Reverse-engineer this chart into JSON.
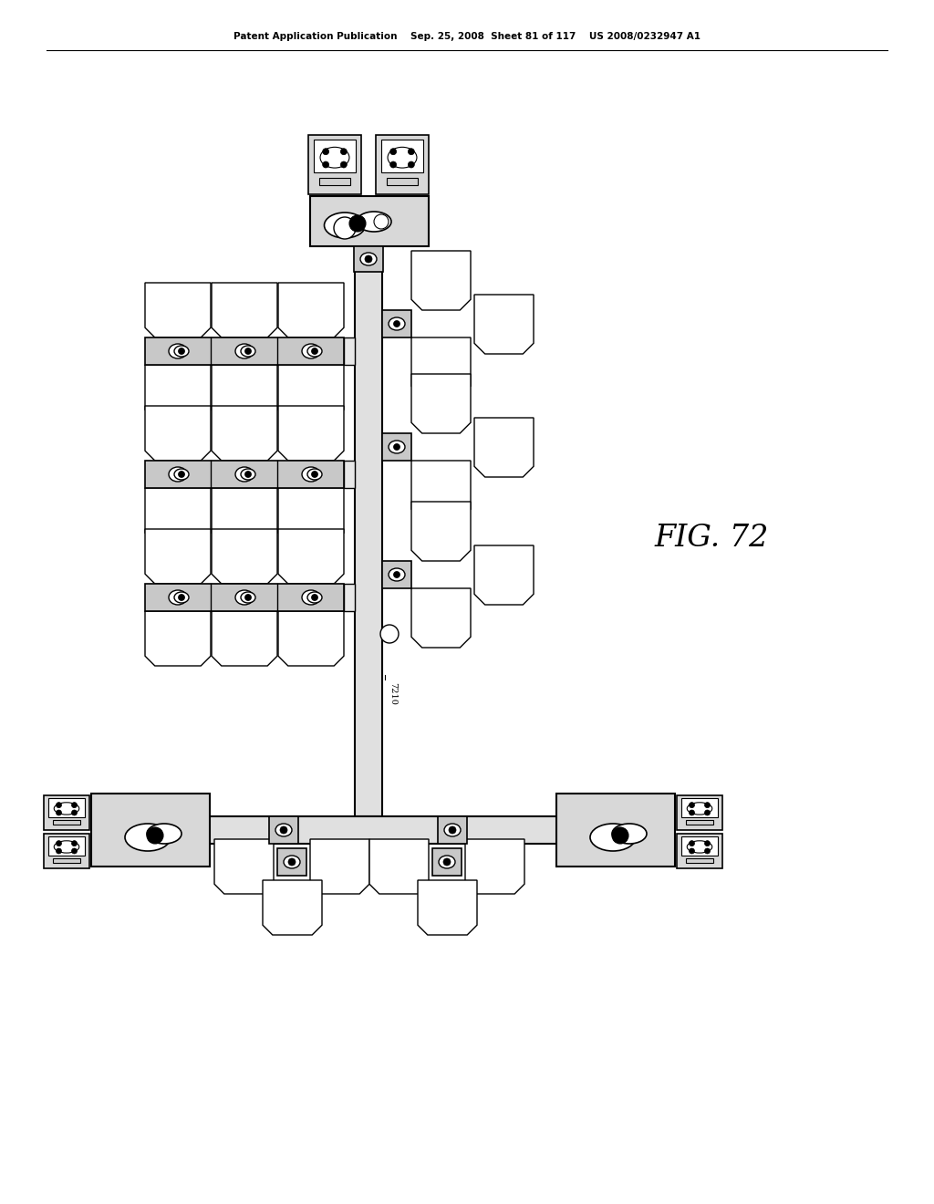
{
  "patent_header_left": "Patent Application Publication",
  "patent_header_mid": "Sep. 25, 2008  Sheet 81 of 117",
  "patent_header_right": "US 2008/0232947 A1",
  "fig_label": "FIG. 72",
  "label_7210": "7210",
  "bg_color": "#ffffff",
  "line_color": "#000000",
  "spine_color": "#e0e0e0",
  "robot_color": "#c8c8c8",
  "load_port_color": "#d8d8d8"
}
